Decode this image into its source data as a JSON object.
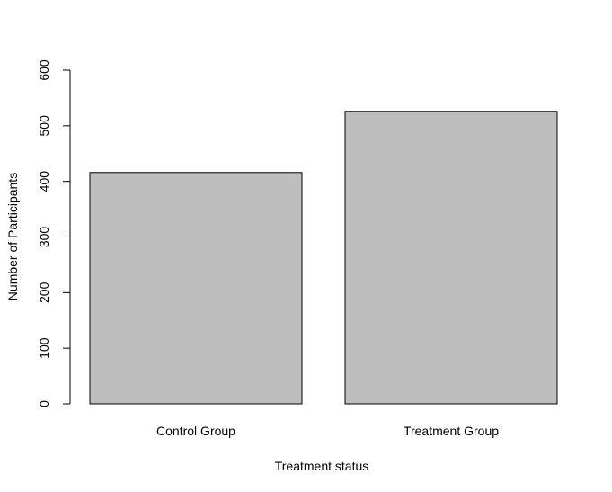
{
  "chart_data": {
    "type": "bar",
    "categories": [
      "Control Group",
      "Treatment Group"
    ],
    "values": [
      416,
      526
    ],
    "title": "",
    "xlabel": "Treatment status",
    "ylabel": "Number of Participants",
    "ylim": [
      0,
      600
    ],
    "yticks": [
      0,
      100,
      200,
      300,
      400,
      500,
      600
    ],
    "yticks_text": [
      "0",
      "100",
      "200",
      "300",
      "400",
      "500",
      "600"
    ],
    "grid": false,
    "legend": "none",
    "bar_fill": "#bebebe",
    "bar_stroke": "#000000"
  }
}
